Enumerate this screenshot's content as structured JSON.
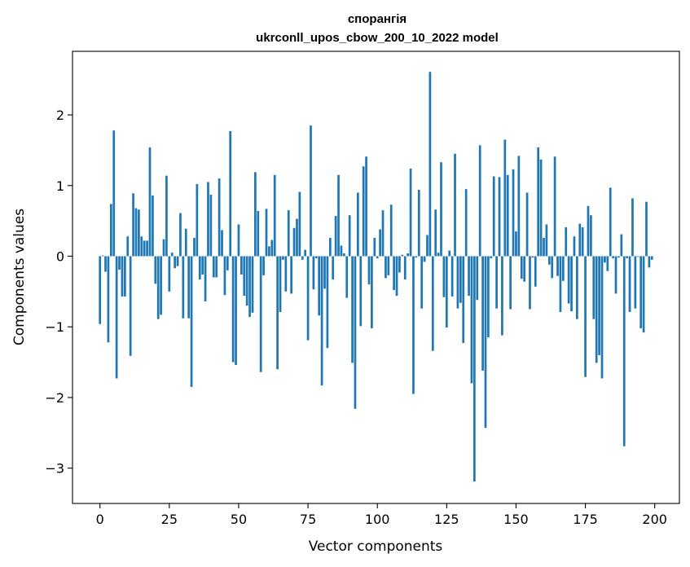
{
  "chart_data": {
    "type": "bar",
    "title": "спорангія",
    "subtitle": "ukrconll_upos_cbow_200_10_2022 model",
    "xlabel": "Vector components",
    "ylabel": "Components values",
    "xlim": [
      -9.9,
      208.9
    ],
    "ylim": [
      -3.5,
      2.9
    ],
    "xticks": [
      0,
      25,
      50,
      75,
      100,
      125,
      150,
      175,
      200
    ],
    "yticks": [
      -3,
      -2,
      -1,
      0,
      1,
      2
    ],
    "ytick_labels": [
      "−3",
      "−2",
      "−1",
      "0",
      "1",
      "2"
    ],
    "grid": false,
    "bar_color": "#1f77b4",
    "x": [
      0,
      1,
      2,
      3,
      4,
      5,
      6,
      7,
      8,
      9,
      10,
      11,
      12,
      13,
      14,
      15,
      16,
      17,
      18,
      19,
      20,
      21,
      22,
      23,
      24,
      25,
      26,
      27,
      28,
      29,
      30,
      31,
      32,
      33,
      34,
      35,
      36,
      37,
      38,
      39,
      40,
      41,
      42,
      43,
      44,
      45,
      46,
      47,
      48,
      49,
      50,
      51,
      52,
      53,
      54,
      55,
      56,
      57,
      58,
      59,
      60,
      61,
      62,
      63,
      64,
      65,
      66,
      67,
      68,
      69,
      70,
      71,
      72,
      73,
      74,
      75,
      76,
      77,
      78,
      79,
      80,
      81,
      82,
      83,
      84,
      85,
      86,
      87,
      88,
      89,
      90,
      91,
      92,
      93,
      94,
      95,
      96,
      97,
      98,
      99,
      100,
      101,
      102,
      103,
      104,
      105,
      106,
      107,
      108,
      109,
      110,
      111,
      112,
      113,
      114,
      115,
      116,
      117,
      118,
      119,
      120,
      121,
      122,
      123,
      124,
      125,
      126,
      127,
      128,
      129,
      130,
      131,
      132,
      133,
      134,
      135,
      136,
      137,
      138,
      139,
      140,
      141,
      142,
      143,
      144,
      145,
      146,
      147,
      148,
      149,
      150,
      151,
      152,
      153,
      154,
      155,
      156,
      157,
      158,
      159,
      160,
      161,
      162,
      163,
      164,
      165,
      166,
      167,
      168,
      169,
      170,
      171,
      172,
      173,
      174,
      175,
      176,
      177,
      178,
      179,
      180,
      181,
      182,
      183,
      184,
      185,
      186,
      187,
      188,
      189,
      190,
      191,
      192,
      193,
      194,
      195,
      196,
      197,
      198,
      199
    ],
    "values": [
      -0.96,
      0.01,
      -0.22,
      -1.22,
      0.74,
      1.78,
      -1.73,
      -0.19,
      -0.57,
      -0.57,
      0.28,
      -1.41,
      0.89,
      0.68,
      0.66,
      0.28,
      0.22,
      0.22,
      1.54,
      0.86,
      -0.39,
      -0.89,
      -0.83,
      0.24,
      1.14,
      -0.5,
      0.05,
      -0.17,
      -0.14,
      0.61,
      -0.88,
      0.39,
      -0.88,
      -1.85,
      0.26,
      1.02,
      -0.33,
      -0.26,
      -0.64,
      1.05,
      0.87,
      -0.3,
      -0.3,
      1.1,
      0.37,
      -0.55,
      -0.2,
      1.77,
      -1.5,
      -1.54,
      0.45,
      -0.26,
      -0.56,
      -0.7,
      -0.86,
      -0.8,
      1.19,
      0.64,
      -1.64,
      -0.27,
      0.67,
      0.14,
      0.23,
      1.15,
      -1.6,
      -0.79,
      -0.05,
      -0.5,
      0.65,
      -0.53,
      0.4,
      0.53,
      0.91,
      -0.05,
      0.09,
      -1.19,
      1.85,
      -0.47,
      -0.03,
      -0.84,
      -1.83,
      -0.46,
      -1.3,
      0.26,
      -0.33,
      0.57,
      1.15,
      0.15,
      0.04,
      -0.59,
      0.58,
      -1.51,
      -2.16,
      0.9,
      -0.99,
      1.27,
      1.41,
      -0.4,
      -1.02,
      0.26,
      -0.03,
      0.38,
      0.65,
      -0.31,
      -0.27,
      0.73,
      -0.48,
      -0.56,
      -0.23,
      0.02,
      -0.33,
      0.04,
      1.24,
      -1.95,
      -0.02,
      0.94,
      -0.74,
      -0.08,
      0.3,
      2.61,
      -1.34,
      0.66,
      0.05,
      1.33,
      -0.58,
      -1.01,
      0.08,
      -0.57,
      1.45,
      -0.74,
      -0.66,
      -1.23,
      0.95,
      -0.56,
      -1.8,
      -3.19,
      -0.62,
      1.57,
      -1.62,
      -2.43,
      -1.15,
      -0.03,
      1.13,
      -0.74,
      1.12,
      -1.12,
      1.65,
      1.15,
      -0.75,
      1.23,
      0.35,
      1.42,
      -0.32,
      -0.36,
      0.9,
      -0.75,
      -0.02,
      -0.43,
      1.54,
      1.37,
      0.26,
      0.45,
      -0.12,
      -0.31,
      1.41,
      -0.28,
      -0.79,
      -0.35,
      0.41,
      -0.67,
      -0.78,
      0.28,
      -0.89,
      0.46,
      0.41,
      -1.71,
      0.71,
      0.58,
      -0.89,
      -1.51,
      -1.4,
      -1.73,
      -0.09,
      -0.21,
      0.97,
      -0.03,
      -0.53,
      -0.02,
      0.31,
      -2.69,
      -0.03,
      -0.79,
      0.82,
      -0.74,
      -0.01,
      -1.02,
      -1.08,
      0.77,
      -0.16,
      -0.05
    ]
  }
}
